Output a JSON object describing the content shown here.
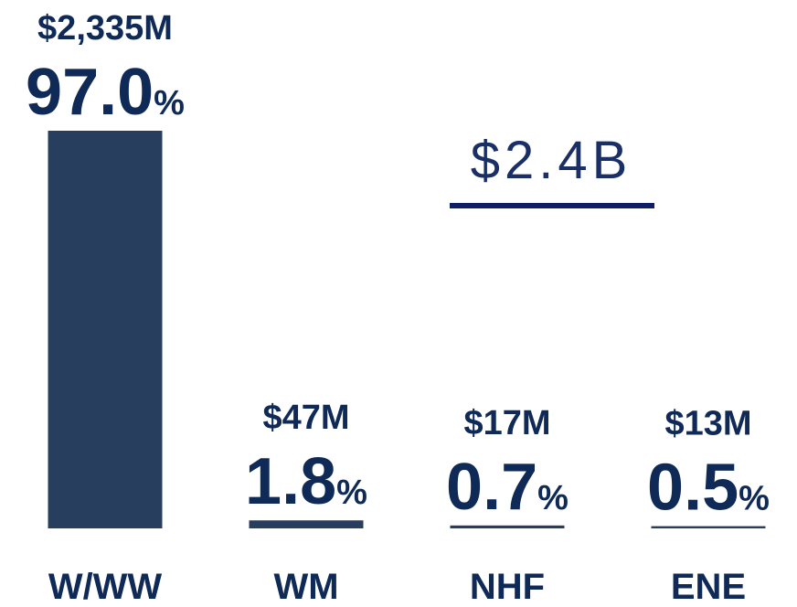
{
  "chart_data": {
    "type": "bar",
    "categories": [
      "W/WW",
      "WM",
      "NHF",
      "ENE"
    ],
    "values": [
      2335,
      47,
      17,
      13
    ],
    "value_labels": [
      "$2,335M",
      "$47M",
      "$17M",
      "$13M"
    ],
    "shares": [
      97.0,
      1.8,
      0.7,
      0.5
    ],
    "share_labels": [
      "97.0%",
      "1.8%",
      "0.7%",
      "0.5%"
    ],
    "annotation": "$2.4B",
    "color": "#283e5e"
  }
}
